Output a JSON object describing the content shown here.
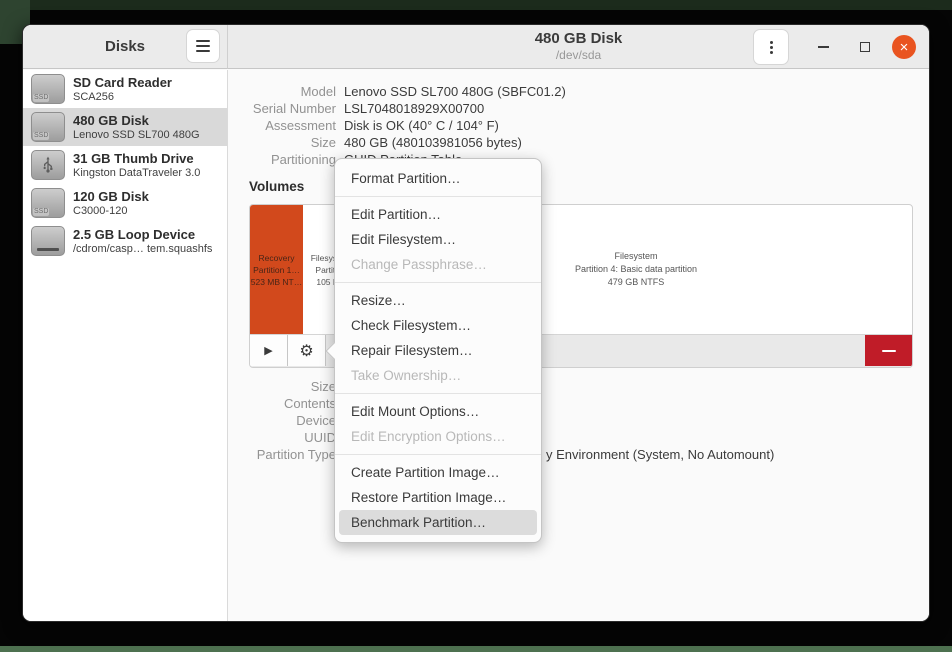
{
  "colors": {
    "accent_orange": "#d2491c",
    "destructive_red": "#c01c28",
    "close_button": "#e95420",
    "selected_row": "#d9d9d9",
    "menu_highlight": "#dcdcdc"
  },
  "icons": {
    "ssd_badge": "SSD"
  },
  "window": {
    "sidebar": {
      "title": "Disks",
      "items": [
        {
          "title": "SD Card Reader",
          "subtitle": "SCA256",
          "icon": "ssd",
          "selected": false
        },
        {
          "title": "480 GB Disk",
          "subtitle": "Lenovo SSD SL700 480G",
          "icon": "ssd",
          "selected": true
        },
        {
          "title": "31 GB Thumb Drive",
          "subtitle": "Kingston DataTraveler 3.0",
          "icon": "usb",
          "selected": false
        },
        {
          "title": "120 GB Disk",
          "subtitle": "C3000-120",
          "icon": "ssd",
          "selected": false
        },
        {
          "title": "2.5 GB Loop Device",
          "subtitle": "/cdrom/casp…  tem.squashfs",
          "icon": "loop",
          "selected": false
        }
      ]
    },
    "header": {
      "title": "480 GB Disk",
      "subtitle": "/dev/sda"
    },
    "disk_info": {
      "rows": [
        {
          "label": "Model",
          "value": "Lenovo SSD SL700 480G (SBFC01.2)"
        },
        {
          "label": "Serial Number",
          "value": "LSL7048018929X00700"
        },
        {
          "label": "Assessment",
          "value": "Disk is OK (40° C / 104° F)"
        },
        {
          "label": "Size",
          "value": "480 GB (480103981056 bytes)"
        },
        {
          "label": "Partitioning",
          "value": "GUID Partition Table"
        }
      ]
    },
    "volumes": {
      "heading": "Volumes",
      "partitions": [
        {
          "lines": [
            "Recovery",
            "Partition 1…",
            "523 MB NT…"
          ]
        },
        {
          "lines": [
            "Filesystem",
            "Partition",
            "105 MB"
          ]
        },
        {
          "lines": [
            "Filesystem",
            "Partition 4: Basic data partition",
            "479 GB NTFS"
          ]
        }
      ]
    },
    "partition_info": {
      "labels": [
        "Size",
        "Contents",
        "Device",
        "UUID",
        "Partition Type"
      ],
      "partition_type_visible": "y Environment (System, No Automount)"
    },
    "context_menu": {
      "items": [
        {
          "label": "Format Partition…",
          "enabled": true,
          "separator_after": true
        },
        {
          "label": "Edit Partition…",
          "enabled": true
        },
        {
          "label": "Edit Filesystem…",
          "enabled": true
        },
        {
          "label": "Change Passphrase…",
          "enabled": false,
          "separator_after": true
        },
        {
          "label": "Resize…",
          "enabled": true
        },
        {
          "label": "Check Filesystem…",
          "enabled": true
        },
        {
          "label": "Repair Filesystem…",
          "enabled": true
        },
        {
          "label": "Take Ownership…",
          "enabled": false,
          "separator_after": true
        },
        {
          "label": "Edit Mount Options…",
          "enabled": true
        },
        {
          "label": "Edit Encryption Options…",
          "enabled": false,
          "separator_after": true
        },
        {
          "label": "Create Partition Image…",
          "enabled": true
        },
        {
          "label": "Restore Partition Image…",
          "enabled": true
        },
        {
          "label": "Benchmark Partition…",
          "enabled": true,
          "highlighted": true
        }
      ]
    }
  }
}
